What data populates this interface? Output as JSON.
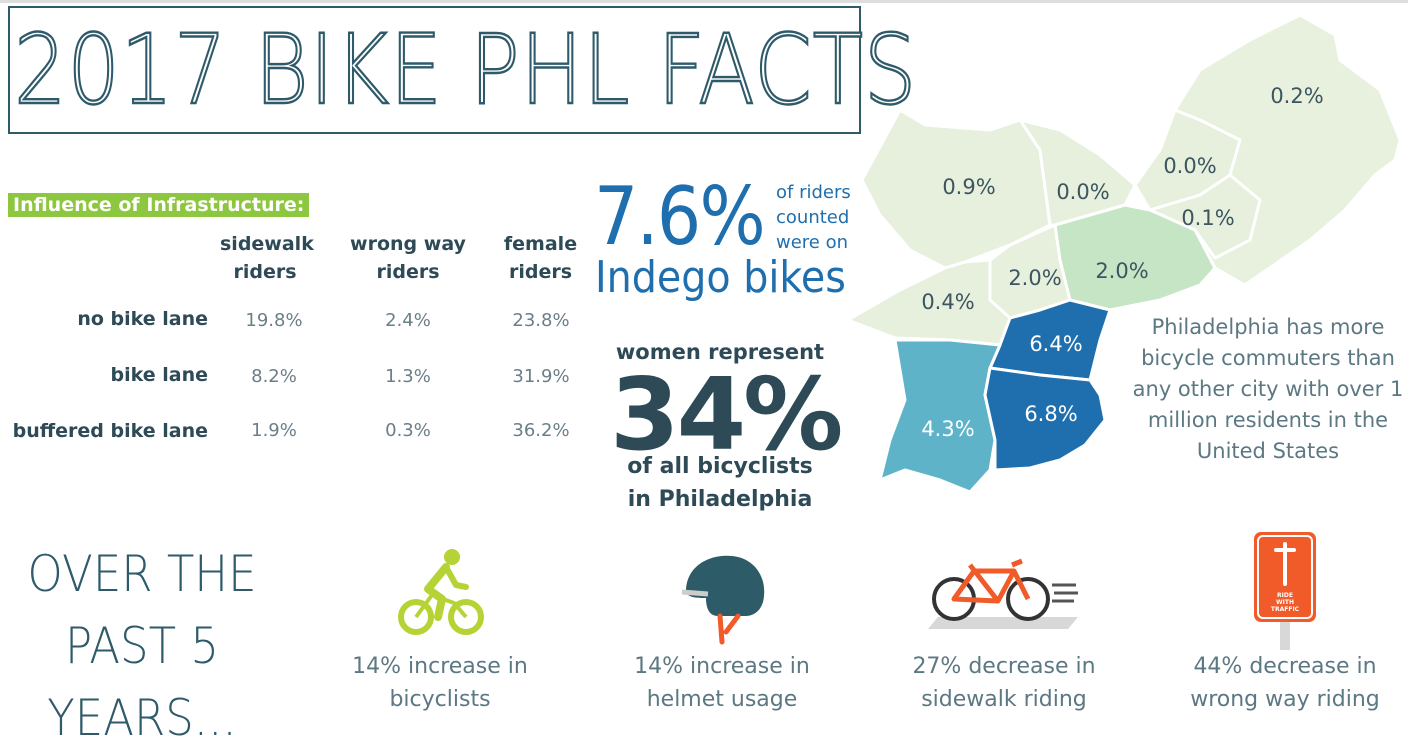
{
  "title": "2017 BIKE PHL FACTS",
  "infrastructure": {
    "label": "Influence of Infrastructure:",
    "columns": [
      "sidewalk riders",
      "wrong way riders",
      "female riders"
    ],
    "rows": [
      {
        "label": "no bike lane",
        "values": [
          "19.8%",
          "2.4%",
          "23.8%"
        ]
      },
      {
        "label": "bike lane",
        "values": [
          "8.2%",
          "1.3%",
          "31.9%"
        ]
      },
      {
        "label": "buffered bike lane",
        "values": [
          "1.9%",
          "0.3%",
          "36.2%"
        ]
      }
    ]
  },
  "indego": {
    "big": "7.6%",
    "note_lines": [
      "of riders",
      "counted",
      "were on"
    ],
    "label": "Indego bikes"
  },
  "women": {
    "line1": "women represent",
    "pct": "34%",
    "line2": "of all bicyclists",
    "line3": "in Philadelphia"
  },
  "map": {
    "regions": [
      "0.2%",
      "0.0%",
      "0.9%",
      "0.0%",
      "0.1%",
      "2.0%",
      "2.0%",
      "0.4%",
      "6.4%",
      "6.8%",
      "4.3%"
    ],
    "colors": {
      "lightest": "#e6f0dd",
      "light": "#c6e5c4",
      "mid": "#5fb3c9",
      "dark": "#1f6fae"
    },
    "note": "Philadelphia has more bicycle commuters than any other city  with over 1 million residents in the United States",
    "note_lines": [
      "Philadelphia has more",
      "bicycle commuters than",
      "any other city  with over 1",
      "million residents in the",
      "United States"
    ]
  },
  "past": {
    "heading_lines": [
      "OVER THE",
      "PAST 5",
      "YEARS..."
    ],
    "stats": [
      {
        "line1": "14% increase in",
        "line2": "bicyclists",
        "icon": "cyclist-icon"
      },
      {
        "line1": "14% increase in",
        "line2": "helmet usage",
        "icon": "helmet-icon"
      },
      {
        "line1": "27% decrease in",
        "line2": "sidewalk riding",
        "icon": "bicycle-icon"
      },
      {
        "line1": "44% decrease in",
        "line2": "wrong way riding",
        "icon": "ride-with-traffic-sign-icon"
      }
    ],
    "sign_text": [
      "RIDE",
      "WITH",
      "TRAFFIC"
    ]
  },
  "colors": {
    "accent_green": "#8dc63f",
    "navy": "#2d4a56",
    "blue": "#1f6fae",
    "orange": "#f15a29"
  }
}
